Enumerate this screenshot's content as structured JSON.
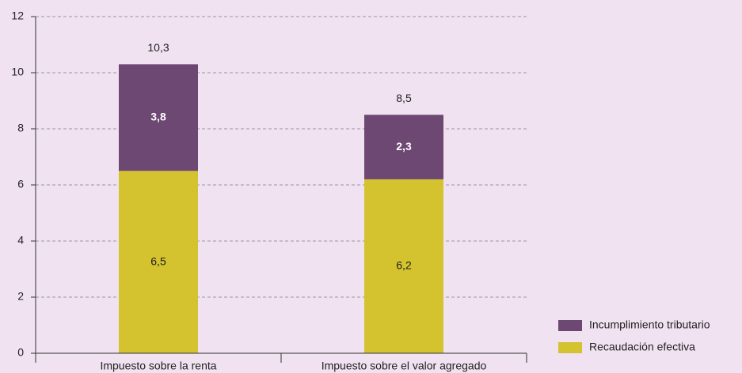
{
  "chart_data": {
    "type": "stacked_bar",
    "categories": [
      "Impuesto sobre la renta",
      "Impuesto sobre el valor agregado"
    ],
    "series": [
      {
        "name": "Recaudación efectiva",
        "color": "#d4c22e",
        "values": [
          6.5,
          6.2
        ],
        "value_labels": [
          "6,5",
          "6,2"
        ]
      },
      {
        "name": "Incumplimiento tributario",
        "color": "#6d4872",
        "values": [
          3.8,
          2.3
        ],
        "value_labels": [
          "3,8",
          "2,3"
        ]
      }
    ],
    "totals": [
      10.3,
      8.5
    ],
    "total_labels": [
      "10,3",
      "8,5"
    ],
    "ylim": [
      0,
      12
    ],
    "yticks": [
      0,
      2,
      4,
      6,
      8,
      10,
      12
    ],
    "grid": true
  }
}
